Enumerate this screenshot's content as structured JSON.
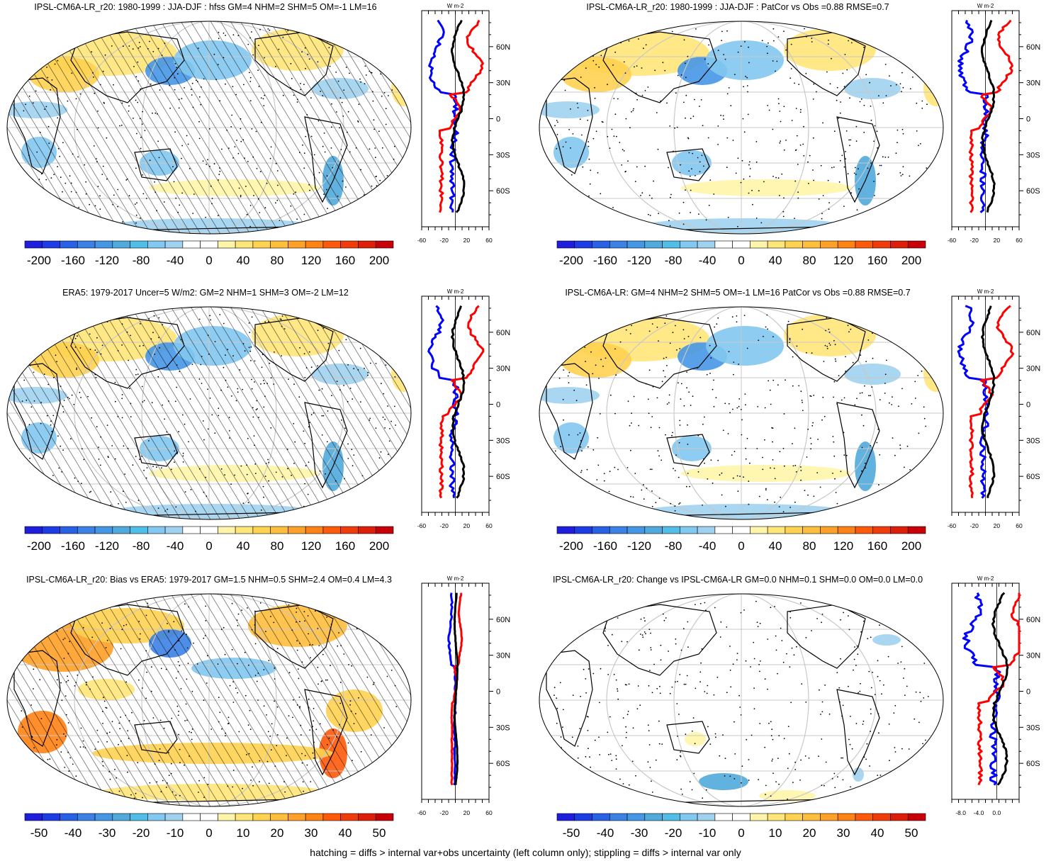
{
  "footer": "hatching = diffs > internal var+obs uncertainty (left column only); stippling = diffs > internal var only",
  "colors": {
    "zonal_lines": [
      "#0000ff",
      "#ff0000",
      "#000000"
    ],
    "scale": [
      "#1e1edc",
      "#1e3ce6",
      "#2860e6",
      "#3c82e6",
      "#4696e6",
      "#50aadc",
      "#50bee6",
      "#82c8f0",
      "#a0d2f0",
      "#ffffff",
      "#ffffff",
      "#fff5aa",
      "#ffe678",
      "#ffd250",
      "#ffbe3c",
      "#ffa028",
      "#ff8214",
      "#ff5a0a",
      "#f03c0a",
      "#dc1e0a",
      "#c8000a"
    ]
  },
  "charts": [
    {
      "title": "IPSL-CM6A-LR_r20: 1980-1999 : JJA-DJF : hfss GM=4 NHM=2 SHM=5 OM=-1 LM=16",
      "colorbar_labels": [
        "-200",
        "-160",
        "-120",
        "-80",
        "-40",
        "0",
        "40",
        "80",
        "120",
        "160",
        "200"
      ],
      "zonal_unit": "W m-2",
      "zonal_xticks": [
        "-60",
        "-20",
        "20",
        "60"
      ],
      "zonal_xlim": [
        -60,
        60
      ],
      "zonal_yticks": [
        "60N",
        "30N",
        "0",
        "30S",
        "60S"
      ],
      "hatching": true
    },
    {
      "title": "IPSL-CM6A-LR_r20: 1980-1999 : JJA-DJF : PatCor vs Obs =0.88 RMSE=0.7",
      "colorbar_labels": [
        "-200",
        "-160",
        "-120",
        "-80",
        "-40",
        "0",
        "40",
        "80",
        "120",
        "160",
        "200"
      ],
      "zonal_unit": "W m-2",
      "zonal_xticks": [
        "-60",
        "-20",
        "20",
        "60"
      ],
      "zonal_xlim": [
        -60,
        60
      ],
      "zonal_yticks": [
        "60N",
        "30N",
        "0",
        "30S",
        "60S"
      ],
      "hatching": false
    },
    {
      "title": "ERA5: 1979-2017 Uncer=5 W/m2: GM=2 NHM=1 SHM=3 OM=-2 LM=12",
      "colorbar_labels": [
        "-200",
        "-160",
        "-120",
        "-80",
        "-40",
        "0",
        "40",
        "80",
        "120",
        "160",
        "200"
      ],
      "zonal_unit": "W m-2",
      "zonal_xticks": [
        "-60",
        "-20",
        "20",
        "60"
      ],
      "zonal_xlim": [
        -60,
        60
      ],
      "zonal_yticks": [
        "60N",
        "30N",
        "0",
        "30S",
        "60S"
      ],
      "hatching": true
    },
    {
      "title": "IPSL-CM6A-LR: GM=4 NHM=2 SHM=5 OM=-1 LM=16 PatCor vs Obs =0.88 RMSE=0.7",
      "colorbar_labels": [
        "-200",
        "-160",
        "-120",
        "-80",
        "-40",
        "0",
        "40",
        "80",
        "120",
        "160",
        "200"
      ],
      "zonal_unit": "W m-2",
      "zonal_xticks": [
        "-60",
        "-20",
        "20",
        "60"
      ],
      "zonal_xlim": [
        -60,
        60
      ],
      "zonal_yticks": [
        "60N",
        "30N",
        "0",
        "30S",
        "60S"
      ],
      "hatching": false
    },
    {
      "title": "IPSL-CM6A-LR_r20: Bias vs ERA5: 1979-2017 GM=1.5 NHM=0.5 SHM=2.4 OM=0.4 LM=4.3",
      "colorbar_labels": [
        "-50",
        "-40",
        "-30",
        "-20",
        "-10",
        "0",
        "10",
        "20",
        "30",
        "40",
        "50"
      ],
      "zonal_unit": "W m-2",
      "zonal_xticks": [
        "-60",
        "-20",
        "20",
        "60"
      ],
      "zonal_xlim": [
        -60,
        60
      ],
      "zonal_yticks": [
        "60N",
        "30N",
        "0",
        "30S",
        "60S"
      ],
      "hatching": true
    },
    {
      "title": "IPSL-CM6A-LR_r20: Change vs IPSL-CM6A-LR GM=0.0 NHM=0.1 SHM=0.0 OM=0.0 LM=0.0",
      "colorbar_labels": [
        "-50",
        "-40",
        "-30",
        "-20",
        "-10",
        "0",
        "10",
        "20",
        "30",
        "40",
        "50"
      ],
      "zonal_unit": "W m-2",
      "zonal_xticks": [
        "-8.0",
        "-4.0",
        "0.0"
      ],
      "zonal_xlim": [
        -10,
        5
      ],
      "zonal_yticks": [
        "60N",
        "30N",
        "0",
        "30S",
        "60S"
      ],
      "hatching": false
    }
  ]
}
